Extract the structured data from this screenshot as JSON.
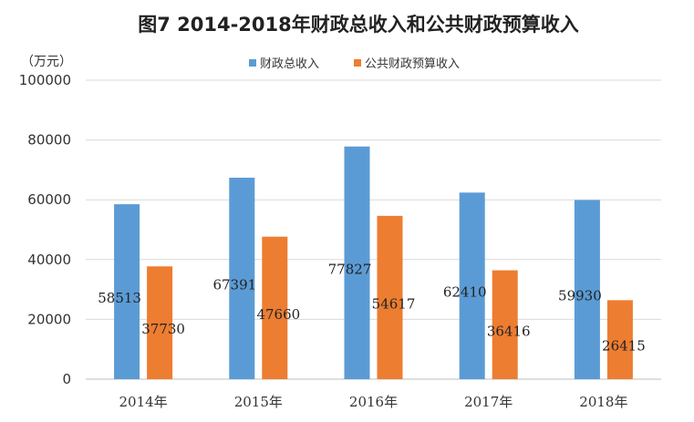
{
  "chart_data": {
    "type": "bar",
    "title": "图7 2014-2018年财政总收入和公共财政预算收入",
    "unit_label": "（万元）",
    "categories": [
      "2014年",
      "2015年",
      "2016年",
      "2017年",
      "2018年"
    ],
    "series": [
      {
        "name": "财政总收入",
        "color": "#5b9bd5",
        "values": [
          58513,
          67391,
          77827,
          62410,
          59930
        ]
      },
      {
        "name": "公共财政预算收入",
        "color": "#ed7d31",
        "values": [
          37730,
          47660,
          54617,
          36416,
          26415
        ]
      }
    ],
    "ylim": [
      0,
      100000
    ],
    "yticks": [
      0,
      20000,
      40000,
      60000,
      80000,
      100000
    ],
    "grid": true,
    "legend_position": "top-center"
  }
}
